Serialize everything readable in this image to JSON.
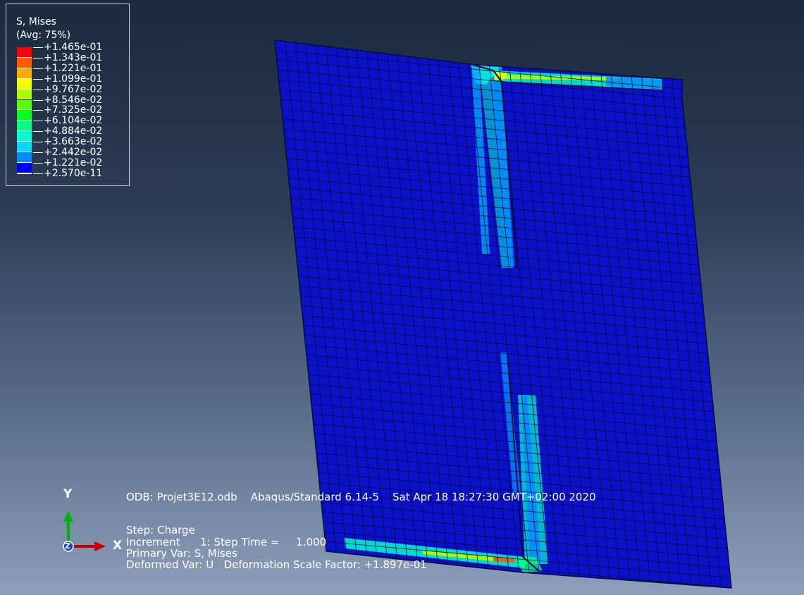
{
  "legend": {
    "title_line1": "S, Mises",
    "title_line2": "(Avg: 75%)",
    "entries": [
      {
        "value": "+1.465e-01",
        "color": "#ff0000"
      },
      {
        "value": "+1.343e-01",
        "color": "#ff5a00"
      },
      {
        "value": "+1.221e-01",
        "color": "#ffa800"
      },
      {
        "value": "+1.099e-01",
        "color": "#f0ff00"
      },
      {
        "value": "+9.767e-02",
        "color": "#a8ff00"
      },
      {
        "value": "+8.546e-02",
        "color": "#57ff00"
      },
      {
        "value": "+7.325e-02",
        "color": "#00ff1a"
      },
      {
        "value": "+6.104e-02",
        "color": "#00ff7d"
      },
      {
        "value": "+4.884e-02",
        "color": "#00ffd0"
      },
      {
        "value": "+3.663e-02",
        "color": "#00d8ff"
      },
      {
        "value": "+2.442e-02",
        "color": "#008cff"
      },
      {
        "value": "+1.221e-02",
        "color": "#003cff"
      },
      {
        "value": "+2.570e-11",
        "color": "#0000ff"
      }
    ]
  },
  "info": {
    "odb_line": "ODB: Projet3E12.odb    Abaqus/Standard 6.14-5    Sat Apr 18 18:27:30 GMT+02:00 2020",
    "step_line": "Step: Charge",
    "increment_line": "Increment      1: Step Time =     1.000",
    "primary_line": "Primary Var: S, Mises",
    "deformed_line": "Deformed Var: U   Deformation Scale Factor: +1.897e-01"
  },
  "triad": {
    "y_label": "Y",
    "x_label": "X",
    "z_label": "Z",
    "y_color": "#00b400",
    "x_color": "#c80000"
  },
  "colors": {
    "mesh_fill": "#0a11c8",
    "mesh_line": "#050a3c"
  }
}
